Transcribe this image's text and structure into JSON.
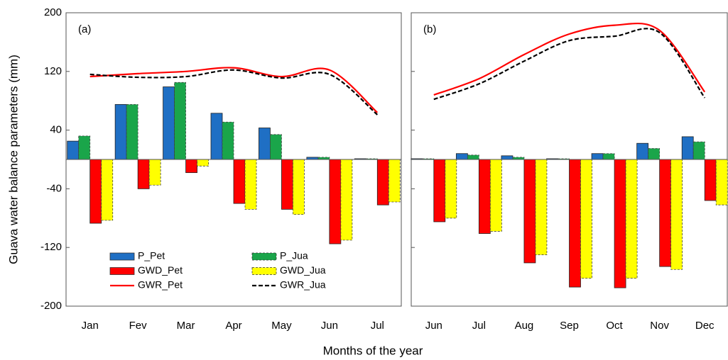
{
  "ylabel": "Guava water balance parameters (mm)",
  "xlabel": "Months of the year",
  "chart_data": [
    {
      "type": "bar",
      "panel_label": "(a)",
      "legend": "lower left",
      "show_ytick_labels": true,
      "categories": [
        "Jan",
        "Fev",
        "Mar",
        "Apr",
        "May",
        "Jun",
        "Jul"
      ],
      "ylim": [
        -200,
        200
      ],
      "yticks": [
        -200,
        -120,
        -40,
        40,
        120,
        200
      ],
      "series": [
        {
          "name": "P_Pet",
          "type": "bar",
          "color": "#1f6fc4",
          "dash": false,
          "values": [
            25,
            75,
            99,
            63,
            43,
            3,
            1
          ]
        },
        {
          "name": "P_Jua",
          "type": "bar",
          "color": "#1aa54a",
          "dash": true,
          "values": [
            32,
            75,
            105,
            51,
            34,
            3,
            1
          ]
        },
        {
          "name": "GWD_Pet",
          "type": "bar",
          "color": "#ff0000",
          "dash": false,
          "values": [
            -87,
            -40,
            -18,
            -60,
            -68,
            -115,
            -62
          ]
        },
        {
          "name": "GWD_Jua",
          "type": "bar",
          "color": "#ffff00",
          "dash": true,
          "values": [
            -83,
            -35,
            -9,
            -68,
            -75,
            -110,
            -58
          ]
        },
        {
          "name": "GWR_Pet",
          "type": "line",
          "color": "#ff0000",
          "dash": false,
          "values": [
            113,
            117,
            120,
            125,
            113,
            122,
            64
          ]
        },
        {
          "name": "GWR_Jua",
          "type": "line",
          "color": "#000000",
          "dash": true,
          "values": [
            116,
            112,
            113,
            122,
            111,
            116,
            61
          ]
        }
      ]
    },
    {
      "type": "bar",
      "panel_label": "(b)",
      "show_ytick_labels": false,
      "categories": [
        "Jun",
        "Jul",
        "Aug",
        "Sep",
        "Oct",
        "Nov",
        "Dec"
      ],
      "ylim": [
        -200,
        200
      ],
      "yticks": [
        -200,
        -120,
        -40,
        40,
        120,
        200
      ],
      "series": [
        {
          "name": "P_Pet",
          "type": "bar",
          "color": "#1f6fc4",
          "dash": false,
          "values": [
            1,
            8,
            5,
            1,
            8,
            22,
            31
          ]
        },
        {
          "name": "P_Jua",
          "type": "bar",
          "color": "#1aa54a",
          "dash": true,
          "values": [
            1,
            6,
            3,
            1,
            8,
            15,
            24
          ]
        },
        {
          "name": "GWD_Pet",
          "type": "bar",
          "color": "#ff0000",
          "dash": false,
          "values": [
            -85,
            -101,
            -141,
            -174,
            -175,
            -146,
            -56
          ]
        },
        {
          "name": "GWD_Jua",
          "type": "bar",
          "color": "#ffff00",
          "dash": true,
          "values": [
            -80,
            -98,
            -130,
            -162,
            -162,
            -150,
            -62
          ]
        },
        {
          "name": "GWR_Pet",
          "type": "line",
          "color": "#ff0000",
          "dash": false,
          "values": [
            88,
            110,
            143,
            171,
            183,
            176,
            92
          ]
        },
        {
          "name": "GWR_Jua",
          "type": "line",
          "color": "#000000",
          "dash": true,
          "values": [
            82,
            103,
            134,
            162,
            168,
            173,
            84
          ]
        }
      ]
    }
  ]
}
